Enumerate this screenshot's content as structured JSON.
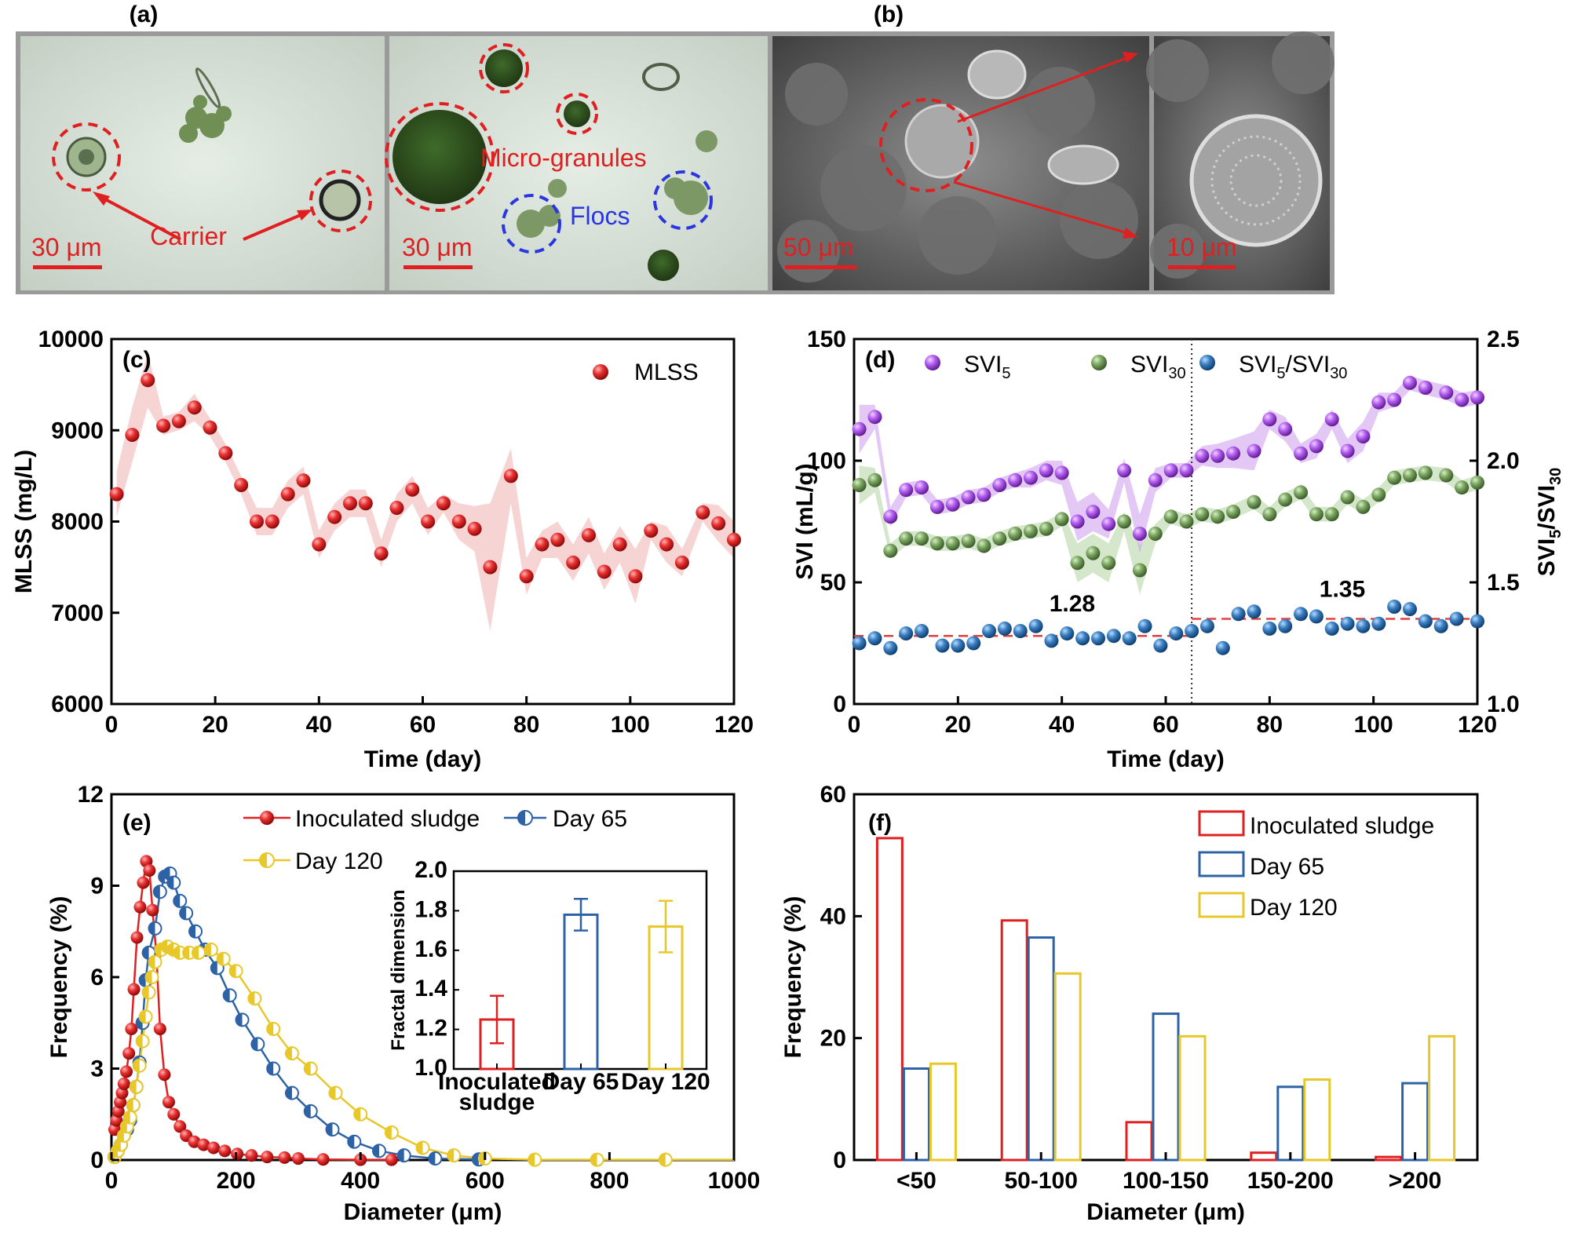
{
  "panels": {
    "a": {
      "label": "(a)",
      "carrier": "Carrier",
      "micro": "Micro-granules",
      "flocs": "Flocs",
      "scale1": "30 μm",
      "scale2": "30 μm"
    },
    "b": {
      "label": "(b)",
      "scale1": "50 μm",
      "scale2": "10 μm"
    }
  },
  "colors": {
    "red": "#e02020",
    "blue": "#2d63a6",
    "yellow": "#e8c728",
    "purple": "#a64ce0",
    "green": "#6d9a55",
    "sphereBlue": "#2c6fb0"
  },
  "chart_data": [
    {
      "id": "c",
      "panel_label": "(c)",
      "type": "scatter",
      "xlabel": "Time (day)",
      "ylabel": "MLSS (mg/L)",
      "xlim": [
        0,
        120
      ],
      "ylim": [
        6000,
        10000
      ],
      "xticks": [
        0,
        20,
        40,
        60,
        80,
        100,
        120
      ],
      "yticks": [
        6000,
        7000,
        8000,
        9000,
        10000
      ],
      "series": [
        {
          "name": "MLSS",
          "x": [
            1,
            4,
            7,
            10,
            13,
            16,
            19,
            22,
            25,
            28,
            31,
            34,
            37,
            40,
            43,
            46,
            49,
            52,
            55,
            58,
            61,
            64,
            67,
            70,
            73,
            77,
            80,
            83,
            86,
            89,
            92,
            95,
            98,
            101,
            104,
            107,
            110,
            114,
            117,
            120
          ],
          "y": [
            8300,
            8950,
            9550,
            9050,
            9100,
            9250,
            9030,
            8750,
            8400,
            8000,
            8000,
            8300,
            8450,
            7750,
            8050,
            8200,
            8200,
            7650,
            8150,
            8350,
            8000,
            8200,
            8000,
            7920,
            7500,
            8500,
            7400,
            7750,
            7800,
            7550,
            7850,
            7450,
            7750,
            7400,
            7900,
            7750,
            7550,
            8100,
            7980,
            7800
          ],
          "band": [
            250,
            300,
            300,
            100,
            100,
            150,
            100,
            100,
            100,
            150,
            150,
            150,
            150,
            150,
            150,
            150,
            150,
            150,
            150,
            150,
            150,
            100,
            200,
            250,
            700,
            300,
            200,
            150,
            200,
            200,
            200,
            200,
            200,
            300,
            100,
            200,
            150,
            100,
            200,
            200
          ]
        }
      ]
    },
    {
      "id": "d",
      "panel_label": "(d)",
      "type": "scatter",
      "xlabel": "Time (day)",
      "ylabel": "SVI (mL/g)",
      "y2label": "SVI5/SVI30",
      "xlim": [
        0,
        120
      ],
      "ylim": [
        0,
        150
      ],
      "y2lim": [
        1.0,
        2.5
      ],
      "xticks": [
        0,
        20,
        40,
        60,
        80,
        100,
        120
      ],
      "yticks": [
        0,
        50,
        100,
        150
      ],
      "y2ticks": [
        "1.0",
        "1.5",
        "2.0",
        "2.5"
      ],
      "divider_x": 65,
      "annotations": [
        {
          "text": "1.28",
          "x": 42,
          "y2": 1.38
        },
        {
          "text": "1.35",
          "x": 94,
          "y2": 1.44
        }
      ],
      "refs": [
        {
          "y2": 1.28,
          "x0": 0,
          "x1": 65
        },
        {
          "y2": 1.35,
          "x0": 65,
          "x1": 120
        }
      ],
      "series": [
        {
          "name": "SVI5",
          "axis": "left",
          "x": [
            1,
            4,
            7,
            10,
            13,
            16,
            19,
            22,
            25,
            28,
            31,
            34,
            37,
            40,
            43,
            46,
            49,
            52,
            55,
            58,
            61,
            64,
            67,
            70,
            73,
            77,
            80,
            83,
            86,
            89,
            92,
            95,
            98,
            101,
            104,
            107,
            110,
            114,
            117,
            120
          ],
          "y": [
            113,
            118,
            77,
            88,
            89,
            81,
            82,
            85,
            86,
            90,
            92,
            93,
            96,
            95,
            75,
            79,
            74,
            96,
            70,
            92,
            96,
            96,
            102,
            102,
            103,
            104,
            117,
            113,
            103,
            106,
            117,
            104,
            110,
            124,
            125,
            132,
            130,
            128,
            125,
            126
          ],
          "band": [
            10,
            5,
            4,
            3,
            3,
            3,
            3,
            3,
            3,
            3,
            3,
            4,
            4,
            5,
            8,
            8,
            6,
            5,
            8,
            5,
            3,
            3,
            4,
            5,
            6,
            8,
            4,
            5,
            4,
            5,
            4,
            5,
            6,
            4,
            3,
            3,
            3,
            3,
            3,
            3
          ]
        },
        {
          "name": "SVI30",
          "axis": "left",
          "x": [
            1,
            4,
            7,
            10,
            13,
            16,
            19,
            22,
            25,
            28,
            31,
            34,
            37,
            40,
            43,
            46,
            49,
            52,
            55,
            58,
            61,
            64,
            67,
            70,
            73,
            77,
            80,
            83,
            86,
            89,
            92,
            95,
            98,
            101,
            104,
            107,
            110,
            114,
            117,
            120
          ],
          "y": [
            90,
            92,
            63,
            68,
            68,
            66,
            66,
            67,
            65,
            68,
            70,
            71,
            72,
            76,
            58,
            62,
            58,
            75,
            55,
            70,
            77,
            75,
            78,
            77,
            79,
            83,
            78,
            84,
            87,
            78,
            78,
            85,
            81,
            86,
            93,
            94,
            95,
            94,
            89,
            91
          ],
          "band": [
            8,
            5,
            3,
            3,
            3,
            3,
            3,
            3,
            3,
            3,
            3,
            3,
            3,
            3,
            8,
            8,
            8,
            4,
            10,
            4,
            3,
            3,
            3,
            3,
            3,
            3,
            3,
            3,
            3,
            3,
            3,
            3,
            3,
            3,
            3,
            3,
            3,
            3,
            3,
            3
          ]
        },
        {
          "name": "SVI5/SVI30",
          "axis": "right",
          "x": [
            1,
            4,
            7,
            10,
            13,
            17,
            20,
            23,
            26,
            29,
            32,
            35,
            38,
            41,
            44,
            47,
            50,
            53,
            56,
            59,
            62,
            65,
            68,
            71,
            74,
            77,
            80,
            83,
            86,
            89,
            92,
            95,
            98,
            101,
            104,
            107,
            110,
            113,
            116,
            120
          ],
          "y": [
            1.25,
            1.27,
            1.23,
            1.29,
            1.3,
            1.24,
            1.24,
            1.25,
            1.3,
            1.31,
            1.3,
            1.32,
            1.26,
            1.29,
            1.27,
            1.27,
            1.28,
            1.27,
            1.32,
            1.24,
            1.29,
            1.3,
            1.32,
            1.23,
            1.37,
            1.38,
            1.31,
            1.32,
            1.37,
            1.36,
            1.31,
            1.33,
            1.32,
            1.33,
            1.4,
            1.39,
            1.34,
            1.32,
            1.35,
            1.34
          ]
        }
      ]
    },
    {
      "id": "e",
      "panel_label": "(e)",
      "type": "line",
      "xlabel": "Diameter (μm)",
      "ylabel": "Frequency (%)",
      "xlim": [
        0,
        1000
      ],
      "ylim": [
        0,
        12
      ],
      "xticks": [
        0,
        200,
        400,
        600,
        800,
        1000
      ],
      "yticks": [
        0,
        3,
        6,
        9,
        12
      ],
      "series": [
        {
          "name": "Inoculated sludge",
          "x": [
            5,
            8,
            11,
            14,
            17,
            20,
            24,
            28,
            32,
            36,
            41,
            46,
            51,
            56,
            61,
            66,
            72,
            78,
            85,
            92,
            100,
            110,
            120,
            133,
            148,
            164,
            182,
            202,
            225,
            250,
            278,
            300,
            340,
            400,
            450
          ],
          "y": [
            1.0,
            1.3,
            1.6,
            1.9,
            2.2,
            2.5,
            2.9,
            3.5,
            4.3,
            5.6,
            7.3,
            8.3,
            9.1,
            9.8,
            9.5,
            8.2,
            6.8,
            4.3,
            2.8,
            1.9,
            1.5,
            1.1,
            0.8,
            0.6,
            0.5,
            0.4,
            0.3,
            0.2,
            0.15,
            0.1,
            0.08,
            0.05,
            0.02,
            0.01,
            0.01
          ]
        },
        {
          "name": "Day 65",
          "x": [
            5,
            10,
            15,
            20,
            25,
            30,
            35,
            40,
            45,
            50,
            55,
            60,
            70,
            78,
            86,
            94,
            100,
            110,
            120,
            135,
            150,
            170,
            190,
            210,
            235,
            260,
            290,
            320,
            355,
            390,
            430,
            470,
            520,
            590
          ],
          "y": [
            0.1,
            0.3,
            0.5,
            0.8,
            1.0,
            1.3,
            1.8,
            2.4,
            3.2,
            4.5,
            5.9,
            6.8,
            7.6,
            8.8,
            9.3,
            9.4,
            9.1,
            8.5,
            8.1,
            7.5,
            6.9,
            6.3,
            5.4,
            4.6,
            3.8,
            3.0,
            2.2,
            1.6,
            1.0,
            0.6,
            0.3,
            0.15,
            0.05,
            0.02
          ]
        },
        {
          "name": "Day 120",
          "x": [
            5,
            10,
            15,
            20,
            25,
            30,
            35,
            40,
            45,
            50,
            55,
            60,
            65,
            70,
            80,
            90,
            100,
            110,
            125,
            140,
            160,
            180,
            200,
            230,
            260,
            290,
            320,
            360,
            400,
            450,
            500,
            550,
            600,
            680,
            780,
            890
          ],
          "y": [
            0.1,
            0.3,
            0.5,
            0.8,
            1.1,
            1.4,
            1.8,
            2.4,
            3.1,
            3.9,
            4.7,
            5.5,
            6.0,
            6.5,
            6.9,
            7.0,
            6.9,
            6.8,
            6.8,
            6.8,
            6.9,
            6.6,
            6.2,
            5.3,
            4.3,
            3.5,
            3.0,
            2.2,
            1.5,
            0.9,
            0.4,
            0.15,
            0.05,
            0.01,
            0.01,
            0.01
          ]
        }
      ],
      "inset": {
        "ylabel": "Fractal dimension",
        "ylim": [
          1.0,
          2.0
        ],
        "yticks": [
          "1.0",
          "1.2",
          "1.4",
          "1.6",
          "1.8",
          "2.0"
        ],
        "categories": [
          "Inoculated sludge",
          "Day 65",
          "Day 120"
        ],
        "category_lines": [
          [
            "Inoculated",
            "sludge"
          ],
          [
            "Day 65"
          ],
          [
            "Day 120"
          ]
        ],
        "values": [
          1.25,
          1.78,
          1.72
        ],
        "errors": [
          0.12,
          0.08,
          0.13
        ]
      }
    },
    {
      "id": "f",
      "panel_label": "(f)",
      "type": "bar",
      "xlabel": "Diameter (μm)",
      "ylabel": "Frequency (%)",
      "ylim": [
        0,
        60
      ],
      "yticks": [
        0,
        20,
        40,
        60
      ],
      "categories": [
        "<50",
        "50-100",
        "100-150",
        "150-200",
        ">200"
      ],
      "series": [
        {
          "name": "Inoculated sludge",
          "values": [
            52.8,
            39.3,
            6.2,
            1.2,
            0.5
          ]
        },
        {
          "name": "Day 65",
          "values": [
            15.0,
            36.5,
            24.0,
            12.0,
            12.6
          ]
        },
        {
          "name": "Day 120",
          "values": [
            15.8,
            30.6,
            20.3,
            13.2,
            20.3
          ]
        }
      ]
    }
  ]
}
